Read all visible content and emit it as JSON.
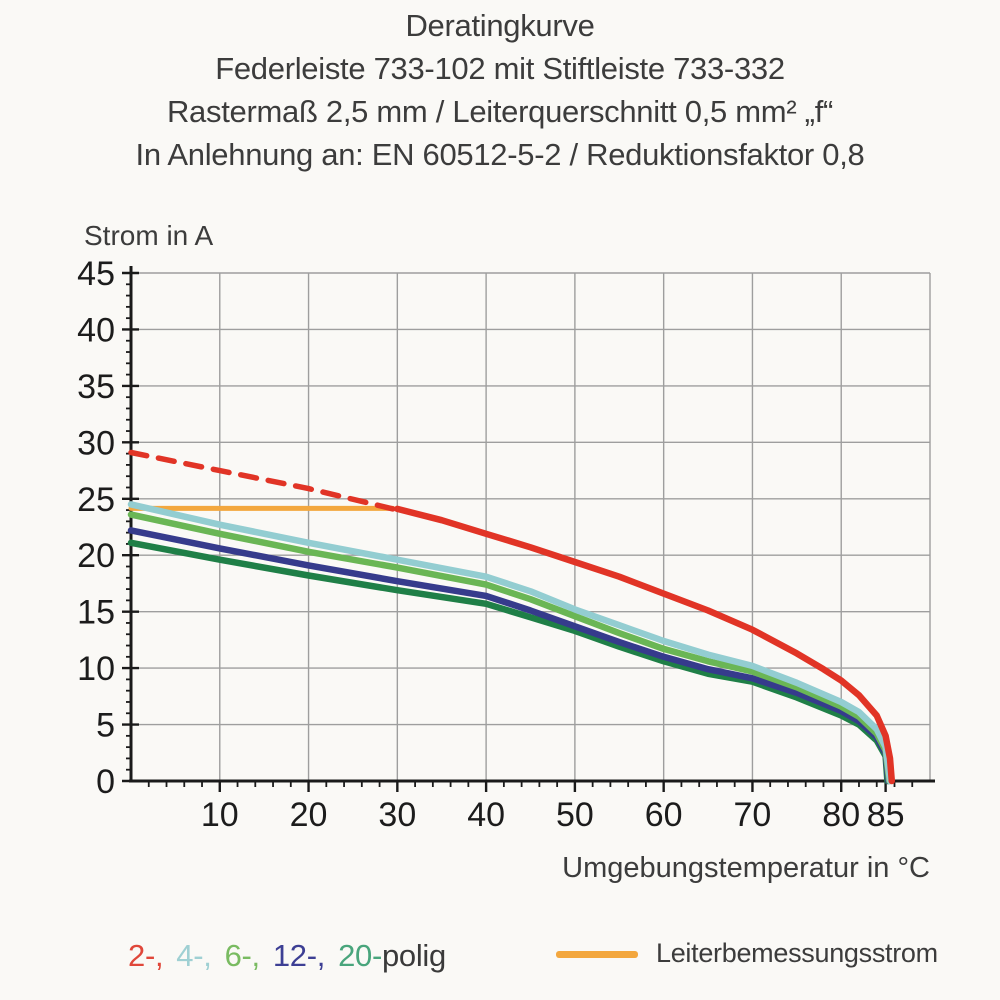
{
  "header": {
    "line1": "Deratingkurve",
    "line2": "Federleiste 733-102 mit Stiftleiste 733-332",
    "line3": "Rastermaß 2,5 mm / Leiterquerschnitt 0,5 mm² „f“",
    "line4": "In Anlehnung an: EN 60512-5-2 / Reduktionsfaktor 0,8"
  },
  "chart_data": {
    "type": "line",
    "title": "Deratingkurve",
    "ylabel": "Strom in A",
    "xlabel": "Umgebungstemperatur in °C",
    "xlim": [
      0,
      90
    ],
    "ylim": [
      0,
      45
    ],
    "x_major_ticks": [
      10,
      20,
      30,
      40,
      50,
      60,
      70,
      80,
      85
    ],
    "y_major_ticks": [
      0,
      5,
      10,
      15,
      20,
      25,
      30,
      35,
      40,
      45
    ],
    "x_grid": [
      10,
      20,
      30,
      40,
      50,
      60,
      70,
      80,
      90
    ],
    "y_grid": [
      5,
      10,
      15,
      20,
      25,
      30,
      35,
      40,
      45
    ],
    "x_minor_step": 2,
    "y_minor_step": 1,
    "grid": true,
    "legend_position": "bottom",
    "colors": {
      "grid": "#9e9e9e",
      "axis": "#1a1a1a",
      "tick_label": "#1c1c1c"
    },
    "series": [
      {
        "name": "Leiterbemessungsstrom",
        "color": "#f3a73e",
        "style": "solid",
        "width": 5,
        "points": [
          [
            0,
            24.15
          ],
          [
            29.5,
            24.15
          ]
        ]
      },
      {
        "name": "2-polig (gestrichelt)",
        "color": "#e13426",
        "style": "dashed",
        "width": 5.5,
        "points": [
          [
            0,
            29.1
          ],
          [
            10,
            27.5
          ],
          [
            20,
            25.9
          ],
          [
            29.5,
            24.1
          ]
        ]
      },
      {
        "name": "20-polig",
        "color": "#1f7f47",
        "style": "solid",
        "width": 6.5,
        "points": [
          [
            0,
            21.1
          ],
          [
            10,
            19.6
          ],
          [
            20,
            18.2
          ],
          [
            30,
            16.9
          ],
          [
            40,
            15.7
          ],
          [
            45,
            14.5
          ],
          [
            50,
            13.3
          ],
          [
            55,
            11.9
          ],
          [
            60,
            10.6
          ],
          [
            65,
            9.5
          ],
          [
            70,
            8.8
          ],
          [
            75,
            7.4
          ],
          [
            80,
            5.8
          ],
          [
            82,
            5.0
          ],
          [
            84,
            3.6
          ],
          [
            85,
            2.2
          ],
          [
            85.2,
            0
          ]
        ]
      },
      {
        "name": "12-polig",
        "color": "#363b8c",
        "style": "solid",
        "width": 6.5,
        "points": [
          [
            0,
            22.2
          ],
          [
            10,
            20.6
          ],
          [
            20,
            19.1
          ],
          [
            30,
            17.7
          ],
          [
            40,
            16.4
          ],
          [
            45,
            15.1
          ],
          [
            50,
            13.7
          ],
          [
            55,
            12.3
          ],
          [
            60,
            11.0
          ],
          [
            65,
            9.9
          ],
          [
            70,
            9.1
          ],
          [
            75,
            7.8
          ],
          [
            80,
            6.2
          ],
          [
            82,
            5.3
          ],
          [
            84,
            3.9
          ],
          [
            85,
            2.4
          ],
          [
            85.3,
            0
          ]
        ]
      },
      {
        "name": "6-polig",
        "color": "#6ab655",
        "style": "solid",
        "width": 6.5,
        "points": [
          [
            0,
            23.6
          ],
          [
            10,
            21.9
          ],
          [
            20,
            20.3
          ],
          [
            30,
            18.9
          ],
          [
            40,
            17.4
          ],
          [
            45,
            16.1
          ],
          [
            50,
            14.6
          ],
          [
            55,
            13.1
          ],
          [
            60,
            11.7
          ],
          [
            65,
            10.6
          ],
          [
            70,
            9.7
          ],
          [
            75,
            8.3
          ],
          [
            80,
            6.6
          ],
          [
            82,
            5.7
          ],
          [
            84,
            4.2
          ],
          [
            85,
            2.7
          ],
          [
            85.4,
            0
          ]
        ]
      },
      {
        "name": "4-polig",
        "color": "#93cdd1",
        "style": "solid",
        "width": 6.5,
        "points": [
          [
            0,
            24.5
          ],
          [
            10,
            22.7
          ],
          [
            20,
            21.1
          ],
          [
            30,
            19.6
          ],
          [
            40,
            18.1
          ],
          [
            45,
            16.8
          ],
          [
            50,
            15.2
          ],
          [
            55,
            13.8
          ],
          [
            60,
            12.4
          ],
          [
            65,
            11.2
          ],
          [
            70,
            10.2
          ],
          [
            75,
            8.7
          ],
          [
            80,
            7.0
          ],
          [
            82,
            6.1
          ],
          [
            84,
            4.6
          ],
          [
            85,
            3.0
          ],
          [
            85.5,
            0
          ]
        ]
      },
      {
        "name": "2-polig",
        "color": "#e13426",
        "style": "solid",
        "width": 6.5,
        "points": [
          [
            30,
            24.1
          ],
          [
            35,
            23.1
          ],
          [
            40,
            21.9
          ],
          [
            45,
            20.7
          ],
          [
            50,
            19.4
          ],
          [
            55,
            18.1
          ],
          [
            60,
            16.6
          ],
          [
            65,
            15.1
          ],
          [
            70,
            13.4
          ],
          [
            75,
            11.3
          ],
          [
            78,
            9.9
          ],
          [
            80,
            8.9
          ],
          [
            82,
            7.6
          ],
          [
            84,
            5.8
          ],
          [
            85,
            4.0
          ],
          [
            85.5,
            2.0
          ],
          [
            85.7,
            0
          ]
        ]
      }
    ]
  },
  "legend": {
    "poles": [
      {
        "label": "2-,",
        "color": "#e0473a"
      },
      {
        "label": "4-,",
        "color": "#9fd0d3"
      },
      {
        "label": "6-,",
        "color": "#79bb61"
      },
      {
        "label": "12-,",
        "color": "#3d3f94"
      },
      {
        "label": "20-",
        "color": "#49a57c"
      },
      {
        "label": "polig",
        "color": "#3a3a3a"
      }
    ],
    "rated": {
      "label": "Leiterbemessungsstrom",
      "color": "#f3a73e"
    }
  }
}
